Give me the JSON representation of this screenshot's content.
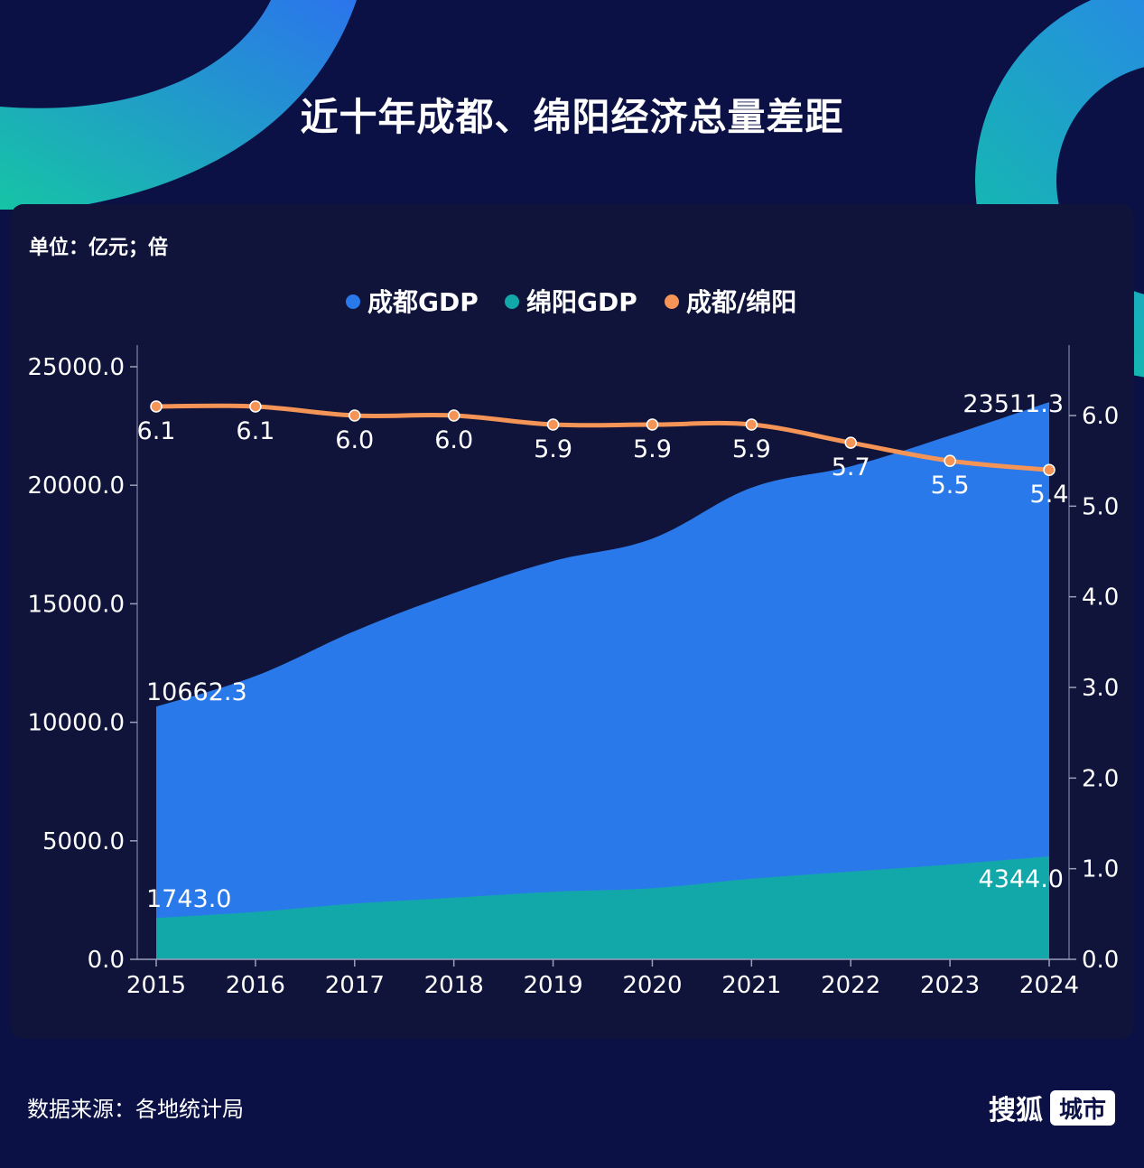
{
  "title": "近十年成都、绵阳经济总量差距",
  "unit_label": "单位：亿元；倍",
  "footer": {
    "source": "数据来源：各地统计局",
    "brand_name": "搜狐",
    "brand_badge": "城市"
  },
  "colors": {
    "background": "#0b1145",
    "panel": "#10143a",
    "chengdu": "#2a79ea",
    "mianyang": "#12a8aa",
    "ratio": "#f49457",
    "deco_gradient_start": "#17d8b0",
    "deco_gradient_end": "#2f7fff"
  },
  "chart_data": {
    "type": "area",
    "categories": [
      "2015",
      "2016",
      "2017",
      "2018",
      "2019",
      "2020",
      "2021",
      "2022",
      "2023",
      "2024"
    ],
    "series": [
      {
        "name": "成都GDP",
        "axis": "left",
        "type": "area",
        "values": [
          10662.3,
          11950,
          13850,
          15450,
          16800,
          17750,
          19900,
          20800,
          22100,
          23511.3
        ],
        "labels": {
          "0": "10662.3",
          "9": "23511.3"
        }
      },
      {
        "name": "绵阳GDP",
        "axis": "left",
        "type": "area",
        "values": [
          1743.0,
          2000,
          2350,
          2600,
          2850,
          3000,
          3400,
          3700,
          4000,
          4344.0
        ],
        "labels": {
          "0": "1743.0",
          "9": "4344.0"
        }
      },
      {
        "name": "成都/绵阳",
        "axis": "right",
        "type": "line",
        "values": [
          6.1,
          6.1,
          6.0,
          6.0,
          5.9,
          5.9,
          5.9,
          5.7,
          5.5,
          5.4
        ],
        "labels": [
          "6.1",
          "6.1",
          "6.0",
          "6.0",
          "5.9",
          "5.9",
          "5.9",
          "5.7",
          "5.5",
          "5.4"
        ]
      }
    ],
    "y_left": {
      "min": 0,
      "max": 25000,
      "ticks": [
        "0.0",
        "5000.0",
        "10000.0",
        "15000.0",
        "20000.0",
        "25000.0"
      ]
    },
    "y_right": {
      "min": 0,
      "max": 6,
      "ticks": [
        "0.0",
        "1.0",
        "2.0",
        "3.0",
        "4.0",
        "5.0",
        "6.0"
      ]
    },
    "legend": {
      "position": "top-center",
      "entries": [
        "成都GDP",
        "绵阳GDP",
        "成都/绵阳"
      ]
    },
    "grid": false
  }
}
